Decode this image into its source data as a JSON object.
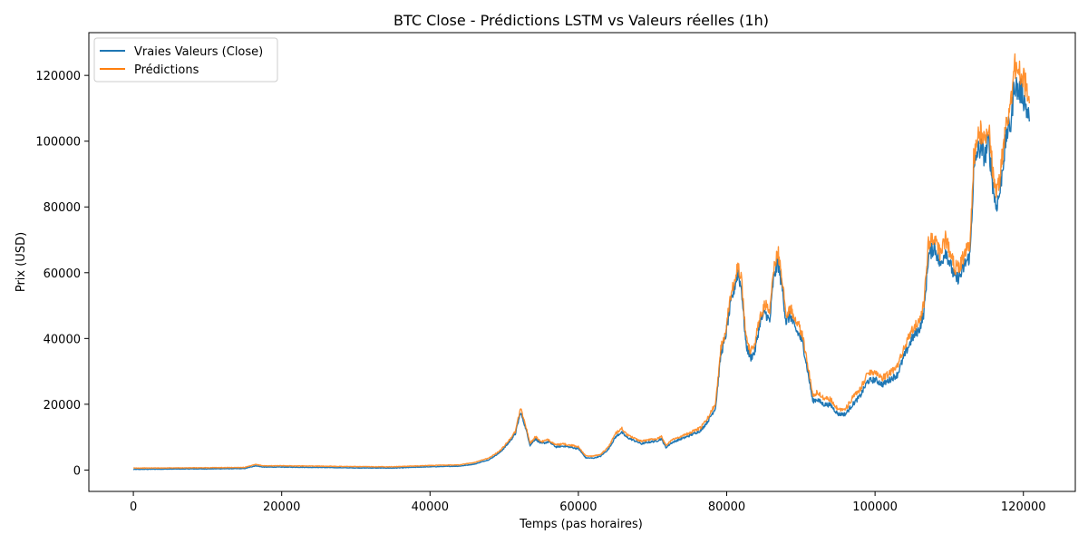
{
  "chart_data": {
    "type": "line",
    "title": "BTC Close - Prédictions LSTM vs Valeurs réelles (1h)",
    "xlabel": "Temps (pas horaires)",
    "ylabel": "Prix (USD)",
    "xlim": [
      -6000,
      127000
    ],
    "ylim": [
      -6500,
      133000
    ],
    "xticks": [
      0,
      20000,
      40000,
      60000,
      80000,
      100000,
      120000
    ],
    "xtick_labels": [
      "0",
      "20000",
      "40000",
      "60000",
      "80000",
      "100000",
      "120000"
    ],
    "yticks": [
      0,
      20000,
      40000,
      60000,
      80000,
      100000,
      120000
    ],
    "ytick_labels": [
      "0",
      "20000",
      "40000",
      "60000",
      "80000",
      "100000",
      "120000"
    ],
    "grid": false,
    "legend_position": "top-left",
    "series": [
      {
        "name": "Vraies Valeurs (Close)",
        "color": "#1f77b4",
        "x": [
          0,
          5000,
          10000,
          15000,
          16500,
          17500,
          20000,
          25000,
          30000,
          35000,
          40000,
          44000,
          46000,
          48000,
          49500,
          50500,
          51500,
          52200,
          52800,
          53500,
          54200,
          55000,
          56000,
          57000,
          58000,
          59000,
          60000,
          61000,
          62000,
          63000,
          64000,
          65000,
          65800,
          66500,
          67500,
          68500,
          69500,
          70500,
          71200,
          71800,
          72500,
          73500,
          74500,
          75500,
          76500,
          77500,
          78500,
          79200,
          79800,
          80500,
          81000,
          81500,
          82000,
          82600,
          83200,
          83800,
          84500,
          85200,
          85800,
          86300,
          86900,
          87500,
          88000,
          88600,
          89200,
          89800,
          90300,
          91000,
          91600,
          92200,
          93000,
          94000,
          95000,
          96000,
          97000,
          98000,
          99000,
          100000,
          101000,
          102000,
          103000,
          104000,
          105000,
          106000,
          106600,
          107200,
          108000,
          108800,
          109500,
          110200,
          110800,
          111500,
          112200,
          112800,
          113300,
          113800,
          114300,
          114800,
          115300,
          115800,
          116300,
          116800,
          117300,
          117800,
          118300,
          118800,
          119300,
          119800,
          120300,
          120800
        ],
        "values": [
          200,
          300,
          350,
          450,
          1300,
          900,
          900,
          800,
          650,
          600,
          1000,
          1200,
          1800,
          3200,
          5500,
          8000,
          11000,
          17500,
          13500,
          7500,
          9500,
          8000,
          8600,
          7000,
          7300,
          6900,
          6500,
          3700,
          3600,
          4200,
          6200,
          10000,
          11500,
          10000,
          9000,
          8000,
          8500,
          8800,
          9500,
          6800,
          8200,
          9200,
          10000,
          11000,
          12000,
          15000,
          19000,
          35000,
          40000,
          50000,
          55000,
          60000,
          55000,
          38000,
          34000,
          36000,
          45000,
          48000,
          45000,
          58000,
          63000,
          55000,
          45000,
          47000,
          43000,
          41000,
          38000,
          29000,
          21000,
          21500,
          20000,
          19800,
          17000,
          17000,
          20000,
          22500,
          27000,
          27500,
          26000,
          27500,
          29000,
          35000,
          40000,
          43000,
          48000,
          65000,
          68000,
          62000,
          67000,
          62000,
          58000,
          59000,
          63000,
          65000,
          90000,
          97000,
          98000,
          95000,
          100000,
          88000,
          80000,
          84000,
          94000,
          103000,
          105000,
          118000,
          115000,
          115000,
          111000,
          106000
        ]
      },
      {
        "name": "Prédictions",
        "color": "#ff7f0e",
        "x": [
          0,
          5000,
          10000,
          15000,
          16500,
          17500,
          20000,
          25000,
          30000,
          35000,
          40000,
          44000,
          46000,
          48000,
          49500,
          50500,
          51500,
          52200,
          52800,
          53500,
          54200,
          55000,
          56000,
          57000,
          58000,
          59000,
          60000,
          61000,
          62000,
          63000,
          64000,
          65000,
          65800,
          66500,
          67500,
          68500,
          69500,
          70500,
          71200,
          71800,
          72500,
          73500,
          74500,
          75500,
          76500,
          77500,
          78500,
          79200,
          79800,
          80500,
          81000,
          81500,
          82000,
          82600,
          83200,
          83800,
          84500,
          85200,
          85800,
          86300,
          86900,
          87500,
          88000,
          88600,
          89200,
          89800,
          90300,
          91000,
          91600,
          92200,
          93000,
          94000,
          95000,
          96000,
          97000,
          98000,
          99000,
          100000,
          101000,
          102000,
          103000,
          104000,
          105000,
          106000,
          106600,
          107200,
          108000,
          108800,
          109500,
          110200,
          110800,
          111500,
          112200,
          112800,
          113300,
          113800,
          114300,
          114800,
          115300,
          115800,
          116300,
          116800,
          117300,
          117800,
          118300,
          118800,
          119300,
          119800,
          120300,
          120800
        ],
        "values": [
          600,
          650,
          700,
          800,
          1700,
          1300,
          1300,
          1200,
          1050,
          1000,
          1400,
          1600,
          2300,
          3700,
          6000,
          8600,
          11700,
          18800,
          14300,
          8100,
          10100,
          8600,
          9200,
          7600,
          7900,
          7500,
          7100,
          4300,
          4200,
          4800,
          6800,
          11000,
          12800,
          10800,
          9700,
          8700,
          9200,
          9500,
          10200,
          7500,
          9000,
          10000,
          10800,
          11800,
          12900,
          16000,
          20300,
          37000,
          42000,
          52500,
          57800,
          62500,
          57500,
          40500,
          36000,
          38500,
          47000,
          50500,
          47500,
          61000,
          66500,
          58000,
          47000,
          49500,
          45500,
          43500,
          40000,
          31000,
          23000,
          23500,
          22000,
          21500,
          18500,
          18500,
          22000,
          24500,
          29500,
          30000,
          28000,
          29500,
          31500,
          37500,
          42500,
          45500,
          51000,
          69000,
          71500,
          65500,
          70500,
          65500,
          61500,
          62500,
          66500,
          68500,
          94500,
          102000,
          103000,
          100000,
          105000,
          92500,
          84500,
          88500,
          98500,
          108000,
          110000,
          123500,
          120500,
          120500,
          117000,
          111500
        ]
      }
    ]
  }
}
